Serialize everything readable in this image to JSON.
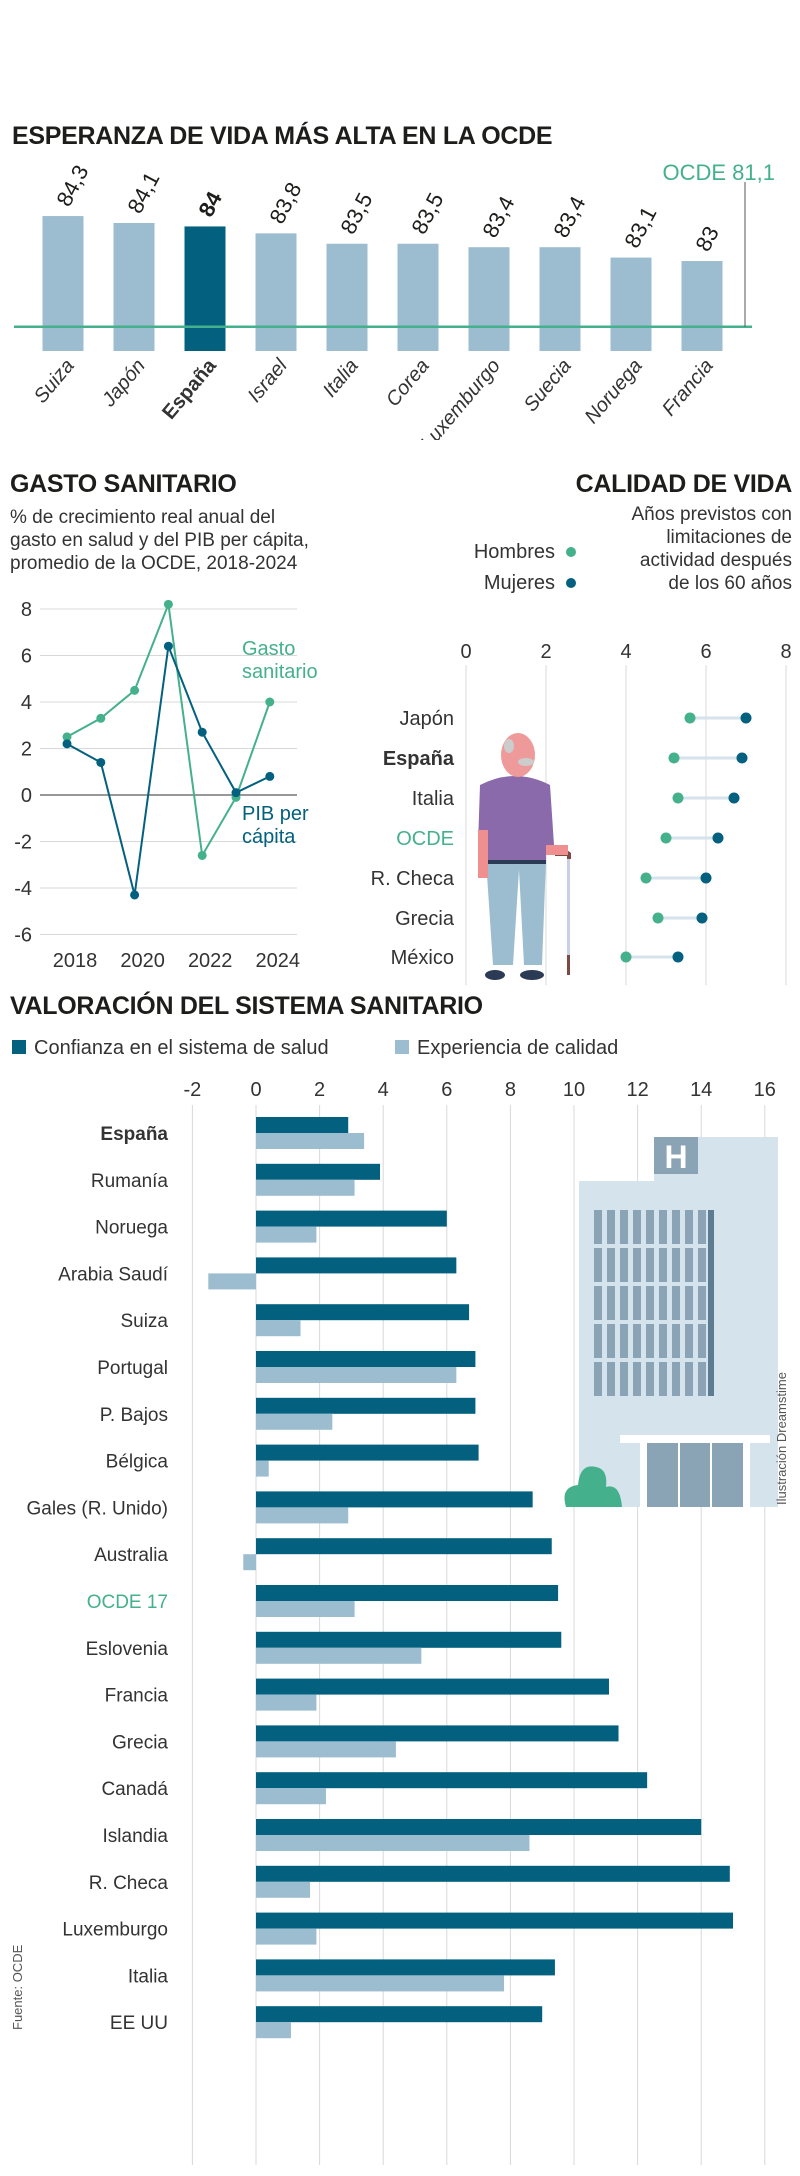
{
  "colors": {
    "dark": "#03617f",
    "light": "#9cbdd0",
    "green": "#45b08c",
    "text": "#222222",
    "grid": "#d8d8d8"
  },
  "chart_data": [
    {
      "type": "bar",
      "title": "ESPERANZA DE VIDA MÁS ALTA EN LA OCDE",
      "categories": [
        "Suiza",
        "Japón",
        "España",
        "Israel",
        "Italia",
        "Corea",
        "Luxemburgo",
        "Suecia",
        "Noruega",
        "Francia"
      ],
      "values": [
        84.3,
        84.1,
        84,
        83.8,
        83.5,
        83.5,
        83.4,
        83.4,
        83.1,
        83
      ],
      "value_labels": [
        "84,3",
        "84,1",
        "84",
        "83,8",
        "83,5",
        "83,5",
        "83,4",
        "83,4",
        "83,1",
        "83"
      ],
      "highlight": "España",
      "reference_line": {
        "label": "OCDE 81,1",
        "value": 81.1
      },
      "ylim": [
        80.4,
        84.3
      ]
    },
    {
      "type": "line",
      "title": "GASTO SANITARIO",
      "subtitle": [
        "% de crecimiento real anual del",
        "gasto en salud y del PIB per cápita,",
        "promedio de la OCDE, 2018-2024"
      ],
      "x": [
        2018,
        2019,
        2020,
        2021,
        2022,
        2023,
        2024
      ],
      "xticks": [
        "2018",
        "2020",
        "2022",
        "2024"
      ],
      "yticks": [
        "8",
        "6",
        "4",
        "2",
        "0",
        "-2",
        "-4",
        "-6"
      ],
      "ylim": [
        -6,
        8
      ],
      "grid": true,
      "series": [
        {
          "name": "Gasto sanitario",
          "name_lines": [
            "Gasto",
            "sanitario"
          ],
          "color": "#45b08c",
          "values": [
            2.5,
            3.3,
            4.5,
            8.2,
            -2.6,
            -0.1,
            4.0
          ]
        },
        {
          "name": "PIB per cápita",
          "name_lines": [
            "PIB per",
            "cápita"
          ],
          "color": "#03617f",
          "values": [
            2.2,
            1.4,
            -4.3,
            6.4,
            2.7,
            0.1,
            0.8
          ]
        }
      ]
    },
    {
      "type": "scatter",
      "title": "CALIDAD DE VIDA",
      "subtitle": [
        "Años previstos con",
        "limitaciones de",
        "actividad después",
        "de los 60 años"
      ],
      "categories": [
        "Japón",
        "España",
        "Italia",
        "OCDE",
        "R. Checa",
        "Grecia",
        "México"
      ],
      "xticks": [
        "0",
        "2",
        "4",
        "6",
        "8"
      ],
      "xlim": [
        0,
        8
      ],
      "grid": true,
      "series": [
        {
          "name": "Hombres",
          "color": "#45b08c",
          "values": [
            5.6,
            5.2,
            5.3,
            5.0,
            4.5,
            4.8,
            4.0
          ]
        },
        {
          "name": "Mujeres",
          "color": "#03617f",
          "values": [
            7.0,
            6.9,
            6.7,
            6.3,
            6.0,
            5.9,
            5.3
          ]
        }
      ]
    },
    {
      "type": "bar",
      "orientation": "horizontal",
      "title": "VALORACIÓN DEL SISTEMA SANITARIO",
      "categories": [
        "España",
        "Rumanía",
        "Noruega",
        "Arabia Saudí",
        "Suiza",
        "Portugal",
        "P. Bajos",
        "Bélgica",
        "Gales (R. Unido)",
        "Australia",
        "OCDE 17",
        "Eslovenia",
        "Francia",
        "Grecia",
        "Canadá",
        "Islandia",
        "R. Checa",
        "Luxemburgo",
        "Italia",
        "EE UU"
      ],
      "xticks": [
        "-2",
        "0",
        "2",
        "4",
        "6",
        "8",
        "10",
        "12",
        "14",
        "16"
      ],
      "xlim": [
        -2,
        16
      ],
      "grid": true,
      "legend": "top-left",
      "series": [
        {
          "name": "Confianza en el sistema de salud",
          "color": "#03617f",
          "values": [
            2.9,
            3.9,
            6.0,
            6.3,
            6.7,
            6.9,
            6.9,
            7.0,
            8.7,
            9.3,
            9.5,
            9.6,
            11.1,
            11.4,
            12.3,
            14.0,
            14.9,
            15.0,
            9.4,
            9.0
          ]
        },
        {
          "name": "Experiencia de calidad",
          "color": "#9cbdd0",
          "values": [
            3.4,
            3.1,
            1.9,
            -1.5,
            1.4,
            6.3,
            2.4,
            0.4,
            2.9,
            -0.4,
            3.1,
            5.2,
            1.9,
            4.4,
            2.2,
            8.6,
            1.7,
            1.9,
            7.8,
            1.1
          ]
        }
      ]
    }
  ],
  "credits": {
    "illustration": "Ilustración Dreamstime",
    "source": "Fuente: OCDE",
    "hospital_sign": "H"
  }
}
